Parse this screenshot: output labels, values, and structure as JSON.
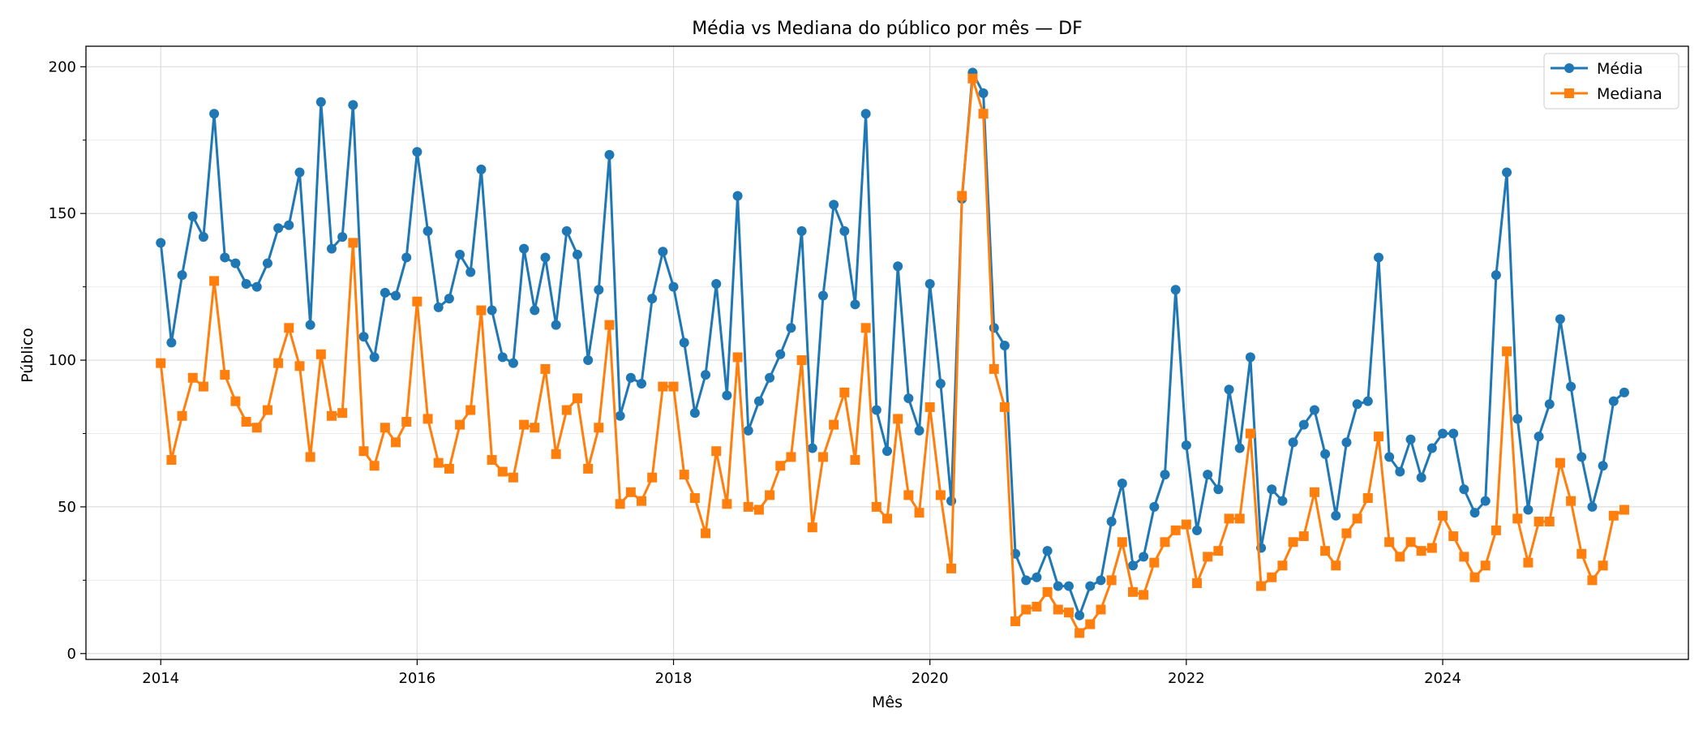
{
  "chart_data": {
    "type": "line",
    "title": "Média vs Mediana do público por mês — DF",
    "xlabel": "Mês",
    "ylabel": "Público",
    "x_ticks": [
      "2014",
      "2016",
      "2018",
      "2020",
      "2022",
      "2024"
    ],
    "y_ticks": [
      "0",
      "50",
      "100",
      "150",
      "200"
    ],
    "xlim": [
      "2013-06",
      "2025-12"
    ],
    "ylim": [
      -2,
      207
    ],
    "grid": true,
    "legend_position": "top-right",
    "start_month": "2014-01",
    "colors": {
      "media": "#1f77b4",
      "mediana": "#ff7f0e"
    },
    "series": [
      {
        "name": "Média",
        "marker": "circle",
        "values": [
          140,
          106,
          129,
          149,
          142,
          184,
          135,
          133,
          126,
          125,
          133,
          145,
          146,
          164,
          112,
          188,
          138,
          142,
          187,
          108,
          101,
          123,
          122,
          135,
          171,
          144,
          118,
          121,
          136,
          130,
          165,
          117,
          101,
          99,
          138,
          117,
          135,
          112,
          144,
          136,
          100,
          124,
          170,
          81,
          94,
          92,
          121,
          137,
          125,
          106,
          82,
          95,
          126,
          88,
          156,
          76,
          86,
          94,
          102,
          111,
          144,
          70,
          122,
          153,
          144,
          119,
          184,
          83,
          69,
          132,
          87,
          76,
          126,
          92,
          52,
          155,
          198,
          191,
          111,
          105,
          34,
          25,
          26,
          35,
          23,
          23,
          13,
          23,
          25,
          45,
          58,
          30,
          33,
          50,
          61,
          124,
          71,
          42,
          61,
          56,
          90,
          70,
          101,
          36,
          56,
          52,
          72,
          78,
          83,
          68,
          47,
          72,
          85,
          86,
          135,
          67,
          62,
          73,
          60,
          70,
          75,
          75,
          56,
          48,
          52,
          129,
          164,
          80,
          49,
          74,
          85,
          114,
          91,
          67,
          50,
          64,
          86,
          89
        ]
      },
      {
        "name": "Mediana",
        "marker": "square",
        "values": [
          99,
          66,
          81,
          94,
          91,
          127,
          95,
          86,
          79,
          77,
          83,
          99,
          111,
          98,
          67,
          102,
          81,
          82,
          140,
          69,
          64,
          77,
          72,
          79,
          120,
          80,
          65,
          63,
          78,
          83,
          117,
          66,
          62,
          60,
          78,
          77,
          97,
          68,
          83,
          87,
          63,
          77,
          112,
          51,
          55,
          52,
          60,
          91,
          91,
          61,
          53,
          41,
          69,
          51,
          101,
          50,
          49,
          54,
          64,
          67,
          100,
          43,
          67,
          78,
          89,
          66,
          111,
          50,
          46,
          80,
          54,
          48,
          84,
          54,
          29,
          156,
          196,
          184,
          97,
          84,
          11,
          15,
          16,
          21,
          15,
          14,
          7,
          10,
          15,
          25,
          38,
          21,
          20,
          31,
          38,
          42,
          44,
          24,
          33,
          35,
          46,
          46,
          75,
          23,
          26,
          30,
          38,
          40,
          55,
          35,
          30,
          41,
          46,
          53,
          74,
          38,
          33,
          38,
          35,
          36,
          47,
          40,
          33,
          26,
          30,
          42,
          103,
          46,
          31,
          45,
          45,
          65,
          52,
          34,
          25,
          30,
          47,
          49
        ]
      }
    ]
  }
}
